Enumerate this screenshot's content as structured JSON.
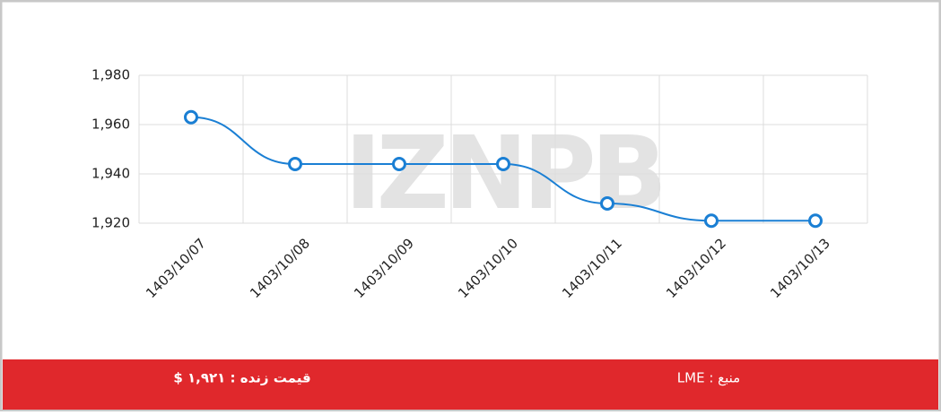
{
  "chart_data": {
    "type": "line",
    "categories": [
      "1403/10/07",
      "1403/10/08",
      "1403/10/09",
      "1403/10/10",
      "1403/10/11",
      "1403/10/12",
      "1403/10/13"
    ],
    "values": [
      1963,
      1944,
      1944,
      1944,
      1928,
      1921,
      1921
    ],
    "color": "#1a7fd4",
    "ylim": [
      1920,
      1980
    ],
    "yticks": [
      {
        "value": 1920,
        "label": "1,920"
      },
      {
        "value": 1940,
        "label": "1,940"
      },
      {
        "value": 1960,
        "label": "1,960"
      },
      {
        "value": 1980,
        "label": "1,980"
      }
    ],
    "grid": true,
    "watermark": "IZNPB",
    "source": "منبع : LME",
    "live_price": "قیمت زنده : ۱,۹۲۱ $"
  }
}
